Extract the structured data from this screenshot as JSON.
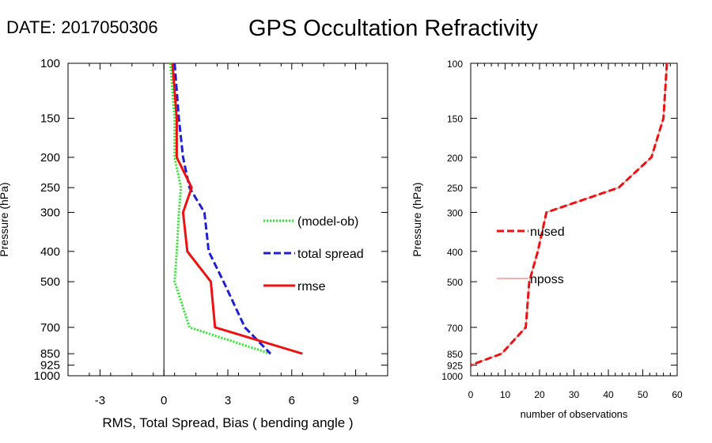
{
  "header": {
    "date_label": "DATE: 2017050306",
    "title": "GPS Occultation Refractivity"
  },
  "chart_data": [
    {
      "type": "line",
      "xlabel": "RMS, Total Spread, Bias ( bending angle )",
      "ylabel": "Pressure (hPa)",
      "xlim": [
        -4.5,
        10.5
      ],
      "ylim": [
        1000,
        100
      ],
      "y_scale": "log",
      "x_ticks": [
        -3,
        0,
        3,
        6,
        9
      ],
      "y_ticks": [
        100,
        150,
        200,
        250,
        300,
        400,
        500,
        700,
        850,
        925,
        1000
      ],
      "zero_line": true,
      "grid": false,
      "legend_position": "right",
      "series": [
        {
          "name": "(model-ob)",
          "color": "#22ee22",
          "dash": "dotted",
          "x": [
            0.3,
            0.5,
            0.5,
            0.8,
            0.7,
            0.6,
            0.5,
            1.2,
            5.0
          ],
          "y": [
            100,
            150,
            200,
            250,
            300,
            400,
            500,
            700,
            850
          ]
        },
        {
          "name": "total spread",
          "color": "#1f1fd6",
          "dash": "dashed",
          "x": [
            0.5,
            0.7,
            0.9,
            1.2,
            1.9,
            2.1,
            2.8,
            3.8,
            5.0
          ],
          "y": [
            100,
            150,
            200,
            250,
            300,
            400,
            500,
            700,
            850
          ]
        },
        {
          "name": "rmse",
          "color": "#ee1111",
          "dash": "solid",
          "x": [
            0.4,
            0.6,
            0.6,
            1.3,
            0.9,
            1.1,
            2.2,
            2.4,
            6.5
          ],
          "y": [
            100,
            150,
            200,
            250,
            300,
            400,
            500,
            700,
            850
          ]
        }
      ]
    },
    {
      "type": "line",
      "xlabel": "number of observations",
      "ylabel": "Pressure (hPa)",
      "xlim": [
        0,
        60
      ],
      "ylim": [
        1000,
        100
      ],
      "y_scale": "log",
      "x_ticks": [
        0,
        10,
        20,
        30,
        40,
        50,
        60
      ],
      "y_ticks": [
        100,
        150,
        200,
        250,
        300,
        400,
        500,
        700,
        850,
        925,
        1000
      ],
      "grid": false,
      "legend_position": "left",
      "series": [
        {
          "name": "nused",
          "color": "#ee1111",
          "dash": "dashed",
          "x": [
            57,
            56,
            52.5,
            43,
            22,
            19.5,
            17,
            16,
            9,
            0
          ],
          "y": [
            100,
            150,
            200,
            250,
            300,
            400,
            500,
            700,
            850,
            925
          ]
        },
        {
          "name": "nposs",
          "color": "#f08080",
          "dash": "solid",
          "x": [
            57,
            56,
            52.5,
            43,
            22,
            19.5,
            17,
            16,
            9,
            0
          ],
          "y": [
            100,
            150,
            200,
            250,
            300,
            400,
            500,
            700,
            850,
            925
          ]
        }
      ]
    }
  ]
}
